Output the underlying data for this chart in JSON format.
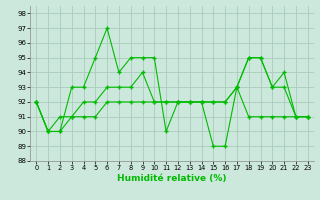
{
  "xlabel": "Humidité relative (%)",
  "bg_color": "#cce8dd",
  "grid_color": "#aaccbb",
  "line_color": "#00bb00",
  "xlim": [
    -0.5,
    23.5
  ],
  "ylim": [
    88,
    98.5
  ],
  "yticks": [
    88,
    89,
    90,
    91,
    92,
    93,
    94,
    95,
    96,
    97,
    98
  ],
  "xticks": [
    0,
    1,
    2,
    3,
    4,
    5,
    6,
    7,
    8,
    9,
    10,
    11,
    12,
    13,
    14,
    15,
    16,
    17,
    18,
    19,
    20,
    21,
    22,
    23
  ],
  "series1": [
    92,
    90,
    90,
    93,
    93,
    95,
    97,
    94,
    95,
    95,
    95,
    90,
    92,
    92,
    92,
    89,
    89,
    93,
    95,
    95,
    93,
    94,
    91,
    91
  ],
  "series2": [
    92,
    90,
    90,
    91,
    91,
    91,
    92,
    92,
    92,
    92,
    92,
    92,
    92,
    92,
    92,
    92,
    92,
    93,
    95,
    95,
    93,
    93,
    91,
    91
  ],
  "series3": [
    92,
    90,
    91,
    91,
    92,
    92,
    93,
    93,
    93,
    94,
    92,
    92,
    92,
    92,
    92,
    92,
    92,
    93,
    91,
    91,
    91,
    91,
    91,
    91
  ]
}
